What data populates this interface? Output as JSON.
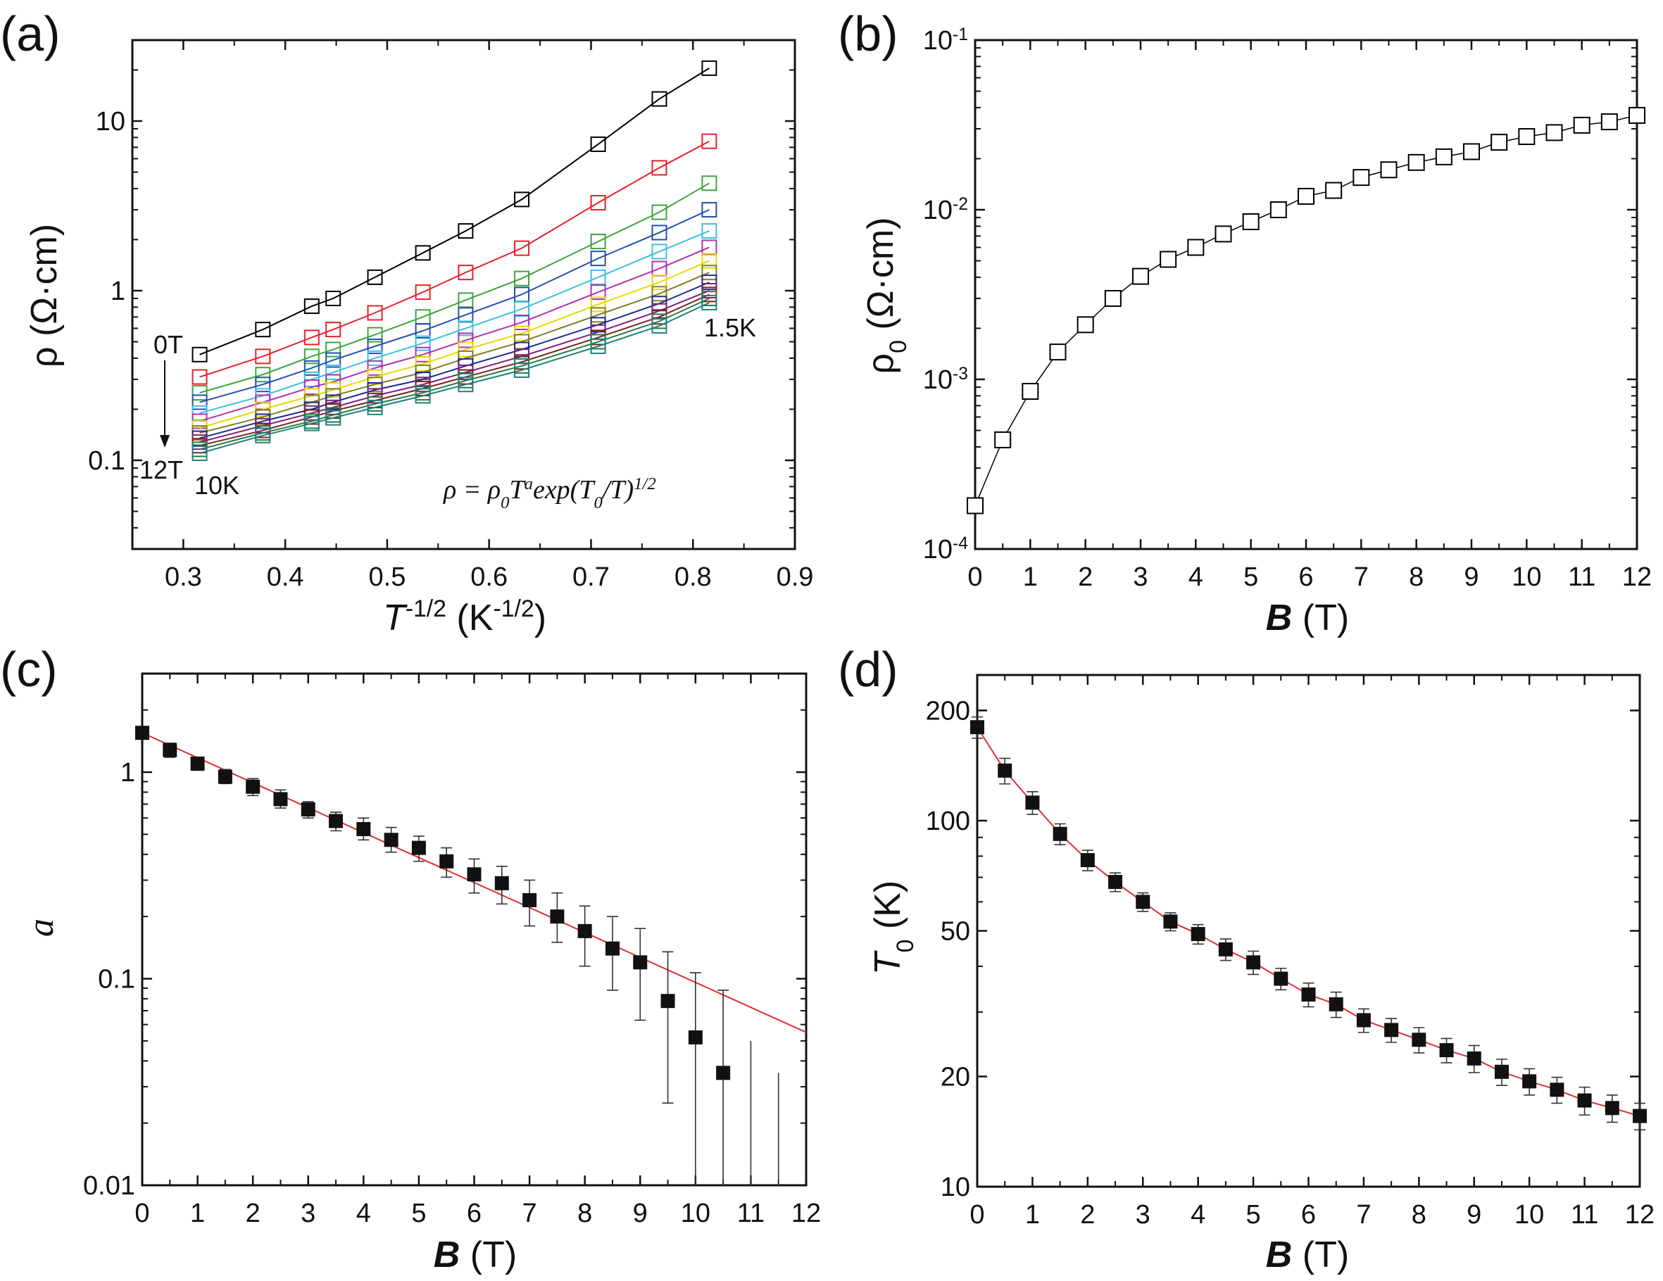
{
  "chart_data": [
    {
      "panel_label": "(a)",
      "type": "line",
      "xlabel": "T^{-1/2} (K^{-1/2})",
      "ylabel": "ρ (Ω·cm)",
      "xlim": [
        0.25,
        0.9
      ],
      "ylim": [
        0.03,
        30
      ],
      "yscale": "log",
      "xticks": [
        0.3,
        0.4,
        0.5,
        0.6,
        0.7,
        0.8,
        0.9
      ],
      "xtick_labels": [
        "0.3",
        "0.4",
        "0.5",
        "0.6",
        "0.7",
        "0.8",
        "0.9"
      ],
      "yticks": [
        0.1,
        1,
        10
      ],
      "ytick_labels": [
        "0.1",
        "1",
        "10"
      ],
      "marker": "open-square",
      "x": [
        0.316,
        0.378,
        0.426,
        0.447,
        0.488,
        0.535,
        0.577,
        0.632,
        0.707,
        0.767,
        0.816
      ],
      "series": [
        {
          "color": "#000000",
          "values": [
            0.42,
            0.59,
            0.81,
            0.9,
            1.2,
            1.67,
            2.25,
            3.45,
            7.3,
            13.5,
            20.5
          ]
        },
        {
          "color": "#e8202a",
          "values": [
            0.31,
            0.41,
            0.53,
            0.59,
            0.74,
            0.98,
            1.28,
            1.78,
            3.3,
            5.3,
            7.6
          ]
        },
        {
          "color": "#3aa63a",
          "values": [
            0.25,
            0.32,
            0.41,
            0.45,
            0.55,
            0.7,
            0.88,
            1.18,
            1.95,
            2.9,
            4.3
          ]
        },
        {
          "color": "#2450b0",
          "values": [
            0.22,
            0.28,
            0.35,
            0.39,
            0.47,
            0.58,
            0.72,
            0.95,
            1.55,
            2.2,
            3.0
          ]
        },
        {
          "color": "#3cc0e0",
          "values": [
            0.19,
            0.24,
            0.3,
            0.33,
            0.4,
            0.49,
            0.6,
            0.78,
            1.2,
            1.7,
            2.25
          ]
        },
        {
          "color": "#b030b0",
          "values": [
            0.17,
            0.22,
            0.27,
            0.29,
            0.35,
            0.42,
            0.51,
            0.65,
            0.98,
            1.35,
            1.8
          ]
        },
        {
          "color": "#e8d800",
          "values": [
            0.155,
            0.2,
            0.24,
            0.26,
            0.31,
            0.37,
            0.45,
            0.56,
            0.83,
            1.12,
            1.5
          ]
        },
        {
          "color": "#808020",
          "values": [
            0.145,
            0.18,
            0.22,
            0.24,
            0.28,
            0.33,
            0.4,
            0.5,
            0.72,
            0.96,
            1.28
          ]
        },
        {
          "color": "#1a2a90",
          "values": [
            0.135,
            0.17,
            0.2,
            0.22,
            0.26,
            0.3,
            0.36,
            0.45,
            0.63,
            0.84,
            1.12
          ]
        },
        {
          "color": "#802080",
          "values": [
            0.128,
            0.16,
            0.19,
            0.205,
            0.24,
            0.28,
            0.33,
            0.41,
            0.57,
            0.76,
            1.0
          ]
        },
        {
          "color": "#802020",
          "values": [
            0.122,
            0.15,
            0.18,
            0.195,
            0.225,
            0.265,
            0.31,
            0.38,
            0.53,
            0.7,
            0.95
          ]
        },
        {
          "color": "#208040",
          "values": [
            0.116,
            0.145,
            0.17,
            0.185,
            0.215,
            0.25,
            0.295,
            0.36,
            0.5,
            0.66,
            0.9
          ]
        },
        {
          "color": "#208080",
          "values": [
            0.11,
            0.14,
            0.165,
            0.178,
            0.205,
            0.24,
            0.28,
            0.34,
            0.47,
            0.62,
            0.85
          ]
        }
      ],
      "annotations": {
        "top_field": "0T",
        "bottom_field": "12T",
        "high_T": "10K",
        "low_T": "1.5K",
        "formula": "ρ = ρ_{0}T^{a}exp(T_{0}/T)^{1/2}"
      }
    },
    {
      "panel_label": "(b)",
      "type": "line",
      "xlabel": "B (T)",
      "ylabel": "ρ_{0} (Ω·cm)",
      "xlim": [
        0,
        12
      ],
      "ylim": [
        0.0001,
        0.1
      ],
      "yscale": "log",
      "xticks": [
        0,
        1,
        2,
        3,
        4,
        5,
        6,
        7,
        8,
        9,
        10,
        11,
        12
      ],
      "xtick_labels": [
        "0",
        "1",
        "2",
        "3",
        "4",
        "5",
        "6",
        "7",
        "8",
        "9",
        "10",
        "11",
        "12"
      ],
      "yticks": [
        0.0001,
        0.001,
        0.01,
        0.1
      ],
      "ytick_labels": [
        "10^{-4}",
        "10^{-3}",
        "10^{-2}",
        "10^{-1}"
      ],
      "marker": "open-square",
      "x": [
        0,
        0.5,
        1,
        1.5,
        2,
        2.5,
        3,
        3.5,
        4,
        4.5,
        5,
        5.5,
        6,
        6.5,
        7,
        7.5,
        8,
        8.5,
        9,
        9.5,
        10,
        10.5,
        11,
        11.5,
        12
      ],
      "series": [
        {
          "color": "#000000",
          "values": [
            0.00018,
            0.00044,
            0.00085,
            0.00145,
            0.0021,
            0.003,
            0.00405,
            0.0051,
            0.006,
            0.0072,
            0.0085,
            0.01,
            0.012,
            0.013,
            0.0155,
            0.0172,
            0.019,
            0.0205,
            0.022,
            0.025,
            0.027,
            0.0285,
            0.0315,
            0.033,
            0.036
          ]
        }
      ]
    },
    {
      "panel_label": "(c)",
      "type": "scatter",
      "xlabel": "B (T)",
      "ylabel": "a",
      "xlim": [
        0,
        12
      ],
      "ylim": [
        0.01,
        3
      ],
      "yscale": "log",
      "xticks": [
        0,
        1,
        2,
        3,
        4,
        5,
        6,
        7,
        8,
        9,
        10,
        11,
        12
      ],
      "xtick_labels": [
        "0",
        "1",
        "2",
        "3",
        "4",
        "5",
        "6",
        "7",
        "8",
        "9",
        "10",
        "11",
        "12"
      ],
      "yticks": [
        0.01,
        0.1,
        1
      ],
      "ytick_labels": [
        "0.01",
        "0.1",
        "1"
      ],
      "marker": "filled-square",
      "x": [
        0,
        0.5,
        1,
        1.5,
        2,
        2.5,
        3,
        3.5,
        4,
        4.5,
        5,
        5.5,
        6,
        6.5,
        7,
        7.5,
        8,
        8.5,
        9,
        9.5,
        10,
        10.5,
        11,
        11.5
      ],
      "series": [
        {
          "color": "#000000",
          "values": [
            1.55,
            1.28,
            1.1,
            0.95,
            0.85,
            0.74,
            0.66,
            0.58,
            0.53,
            0.47,
            0.43,
            0.37,
            0.32,
            0.29,
            0.24,
            0.2,
            0.17,
            0.14,
            0.12,
            0.078,
            0.052,
            0.035,
            null,
            null
          ],
          "err_low": [
            1.45,
            1.18,
            1.02,
            0.88,
            0.77,
            0.67,
            0.6,
            0.52,
            0.47,
            0.41,
            0.37,
            0.31,
            0.26,
            0.23,
            0.18,
            0.15,
            0.115,
            0.088,
            0.063,
            0.025,
            0.01,
            0.01,
            0.01,
            0.01
          ],
          "err_high": [
            1.65,
            1.38,
            1.18,
            1.03,
            0.93,
            0.82,
            0.72,
            0.64,
            0.6,
            0.54,
            0.49,
            0.43,
            0.38,
            0.35,
            0.3,
            0.26,
            0.225,
            0.2,
            0.175,
            0.135,
            0.107,
            0.088,
            0.05,
            0.035
          ]
        }
      ],
      "fit": {
        "color": "#e03030",
        "x": [
          0,
          12
        ],
        "y": [
          1.55,
          0.055
        ]
      }
    },
    {
      "panel_label": "(d)",
      "type": "scatter",
      "xlabel": "B (T)",
      "ylabel": "T_{0} (K)",
      "xlim": [
        0,
        12
      ],
      "ylim": [
        10,
        250
      ],
      "yscale": "log",
      "xticks": [
        0,
        1,
        2,
        3,
        4,
        5,
        6,
        7,
        8,
        9,
        10,
        11,
        12
      ],
      "xtick_labels": [
        "0",
        "1",
        "2",
        "3",
        "4",
        "5",
        "6",
        "7",
        "8",
        "9",
        "10",
        "11",
        "12"
      ],
      "yticks": [
        10,
        20,
        50,
        100,
        200
      ],
      "ytick_labels": [
        "10",
        "20",
        "50",
        "100",
        "200"
      ],
      "marker": "filled-square",
      "x": [
        0,
        0.5,
        1,
        1.5,
        2,
        2.5,
        3,
        3.5,
        4,
        4.5,
        5,
        5.5,
        6,
        6.5,
        7,
        7.5,
        8,
        8.5,
        9,
        9.5,
        10,
        10.5,
        11,
        11.5,
        12
      ],
      "series": [
        {
          "color": "#000000",
          "values": [
            180,
            137,
            112,
            92,
            78,
            68,
            60,
            53,
            49,
            44.5,
            41,
            37,
            33.5,
            31.5,
            28.5,
            26.8,
            25.2,
            23.6,
            22.4,
            20.6,
            19.4,
            18.4,
            17.2,
            16.4,
            15.6
          ],
          "err_low": [
            168,
            126,
            104,
            86,
            73,
            64,
            56.5,
            50,
            46,
            41.5,
            38,
            34.5,
            31,
            29,
            26.4,
            24.8,
            23.2,
            21.8,
            20.5,
            18.9,
            17.8,
            16.9,
            15.7,
            15.0,
            14.3
          ],
          "err_high": [
            192,
            148,
            120,
            98,
            83,
            72,
            63.5,
            56,
            52,
            47.5,
            44,
            39.5,
            36,
            34,
            30.6,
            28.8,
            27.2,
            25.4,
            24.3,
            22.3,
            21.0,
            19.9,
            18.7,
            17.8,
            16.9
          ]
        }
      ],
      "fit": {
        "color": "#e03030",
        "follows_data": true
      }
    }
  ]
}
